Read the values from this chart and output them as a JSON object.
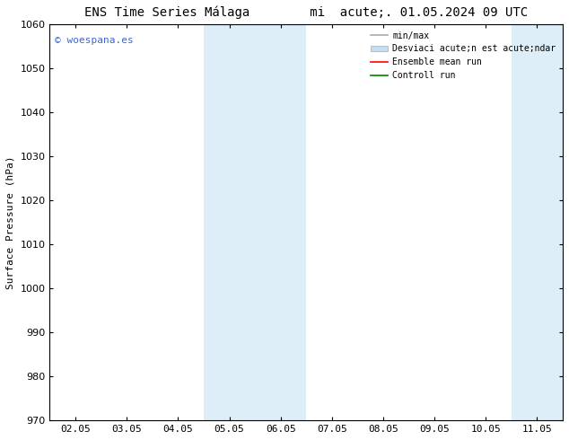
{
  "title_part1": "ENS Time Series Málaga",
  "title_part2": "mi  acute;. 01.05.2024 09 UTC",
  "ylabel": "Surface Pressure (hPa)",
  "ylim": [
    970,
    1060
  ],
  "yticks": [
    970,
    980,
    990,
    1000,
    1010,
    1020,
    1030,
    1040,
    1050,
    1060
  ],
  "xtick_labels": [
    "02.05",
    "03.05",
    "04.05",
    "05.05",
    "06.05",
    "07.05",
    "08.05",
    "09.05",
    "10.05",
    "11.05"
  ],
  "xtick_positions": [
    0,
    1,
    2,
    3,
    4,
    5,
    6,
    7,
    8,
    9
  ],
  "xlim": [
    -0.5,
    9.5
  ],
  "shade_regions": [
    {
      "xstart": 2.5,
      "xend": 4.5,
      "color": "#ddeef8"
    },
    {
      "xstart": 8.5,
      "xend": 9.5,
      "color": "#ddeef8"
    }
  ],
  "watermark_text": "© woespana.es",
  "watermark_color": "#4466cc",
  "background_color": "#ffffff",
  "legend_label_minmax": "min/max",
  "legend_label_std": "Desviaci acute;n est acute;ndar",
  "legend_label_ensemble": "Ensemble mean run",
  "legend_label_control": "Controll run",
  "legend_color_minmax": "#aaaaaa",
  "legend_color_std": "#c8ddf0",
  "legend_color_ensemble": "red",
  "legend_color_control": "green",
  "font_size_title": 10,
  "font_size_axis": 8,
  "font_size_tick": 8,
  "font_size_legend": 7,
  "font_size_watermark": 8
}
